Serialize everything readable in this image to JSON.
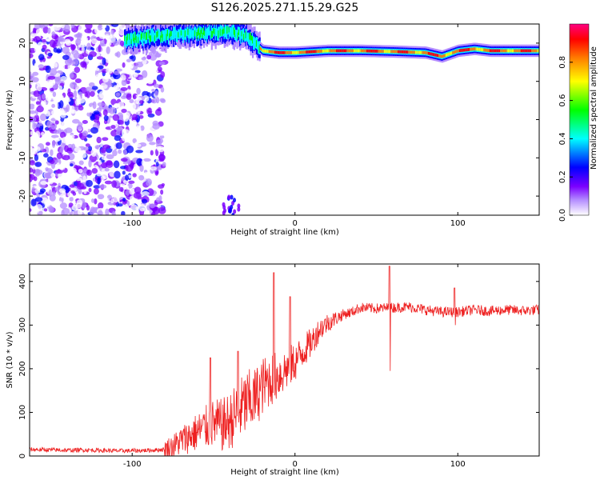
{
  "chart_data": [
    {
      "type": "heatmap",
      "title": "S126.2025.271.15.29.G25",
      "xlabel": "Height of straight line (km)",
      "ylabel": "Frequency (Hz)",
      "xlim": [
        -163,
        150
      ],
      "ylim": [
        -25,
        25
      ],
      "xticks": [
        -100,
        0,
        100
      ],
      "yticks": [
        -20,
        -10,
        0,
        10,
        20
      ],
      "colorbar": {
        "label": "Normalized spectral amplitude",
        "range": [
          0,
          1
        ],
        "ticks": [
          0.0,
          0.2,
          0.4,
          0.6,
          0.8
        ],
        "colors": [
          "#ffffff",
          "#7b00ff",
          "#0000ff",
          "#00ffff",
          "#00ff00",
          "#ffff00",
          "#ff7f00",
          "#ff0000",
          "#ff0080"
        ]
      },
      "features": [
        {
          "name": "signal",
          "x_range": [
            -105,
            150
          ],
          "frequency_track": [
            [
              -105,
              21
            ],
            [
              -80,
              22
            ],
            [
              -60,
              22.5
            ],
            [
              -40,
              23
            ],
            [
              -30,
              22
            ],
            [
              -25,
              20
            ],
            [
              -20,
              18
            ],
            [
              -10,
              17.5
            ],
            [
              0,
              17.5
            ],
            [
              20,
              18
            ],
            [
              40,
              18
            ],
            [
              60,
              17.8
            ],
            [
              80,
              17.5
            ],
            [
              90,
              16.5
            ],
            [
              100,
              18
            ],
            [
              110,
              18.5
            ],
            [
              120,
              18
            ],
            [
              150,
              18
            ]
          ]
        },
        {
          "name": "noise",
          "x_range": [
            -163,
            -80
          ],
          "frequency_range": [
            -25,
            25
          ]
        }
      ]
    },
    {
      "type": "line",
      "title": "",
      "xlabel": "Height of straight line (km)",
      "ylabel": "SNR (10 * v/v)",
      "xlim": [
        -163,
        150
      ],
      "ylim": [
        0,
        440
      ],
      "xticks": [
        -100,
        0,
        100
      ],
      "yticks": [
        0,
        100,
        200,
        300,
        400
      ],
      "color": "#ee2222",
      "series": [
        {
          "x": [
            -163,
            -150,
            -140,
            -130,
            -120,
            -110,
            -100,
            -90,
            -80,
            -75,
            -70,
            -65,
            -60,
            -55,
            -50,
            -45,
            -40,
            -35,
            -30,
            -25,
            -20,
            -15,
            -10,
            -5,
            0,
            5,
            10,
            15,
            20,
            25,
            30,
            35,
            40,
            50,
            60,
            70,
            80,
            90,
            100,
            110,
            120,
            130,
            140,
            150
          ],
          "values": [
            15,
            14,
            13,
            14,
            13,
            12,
            12,
            13,
            15,
            22,
            35,
            45,
            55,
            65,
            75,
            70,
            80,
            100,
            120,
            130,
            160,
            175,
            185,
            200,
            215,
            240,
            260,
            290,
            305,
            315,
            325,
            330,
            340,
            338,
            340,
            342,
            335,
            330,
            330,
            335,
            332,
            335,
            333,
            335
          ]
        }
      ],
      "spikes": [
        {
          "x": -13,
          "peak": 420
        },
        {
          "x": -3,
          "peak": 365
        },
        {
          "x": 58,
          "peak": 435,
          "trough": 195
        },
        {
          "x": 98,
          "peak": 385,
          "trough": 300
        },
        {
          "x": -52,
          "peak": 225
        },
        {
          "x": -35,
          "peak": 240
        }
      ]
    }
  ]
}
